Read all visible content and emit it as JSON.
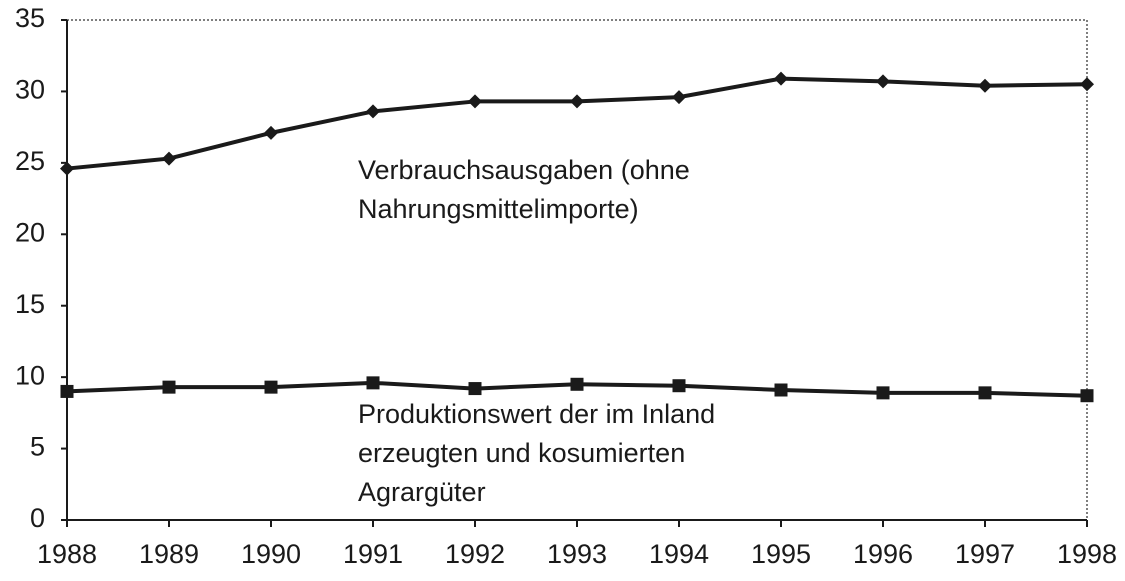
{
  "chart_data": {
    "type": "line",
    "x": [
      1988,
      1989,
      1990,
      1991,
      1992,
      1993,
      1994,
      1995,
      1996,
      1997,
      1998
    ],
    "series": [
      {
        "color": "#1a1a1a",
        "marker": "diamond",
        "values": [
          24.6,
          25.3,
          27.1,
          28.6,
          29.3,
          29.3,
          29.6,
          30.9,
          30.7,
          30.4,
          30.5
        ]
      },
      {
        "color": "#1a1a1a",
        "marker": "square",
        "values": [
          9.0,
          9.3,
          9.3,
          9.6,
          9.2,
          9.5,
          9.4,
          9.1,
          8.9,
          8.9,
          8.7
        ]
      }
    ],
    "annotations": [
      [
        "Verbrauchsausgaben (ohne",
        "Nahrungsmittelimporte)"
      ],
      [
        "Produktionswert der im Inland",
        "erzeugten und kosumierten",
        "Agrargüter"
      ]
    ],
    "xlim": [
      1988,
      1998
    ],
    "xticks": [
      1988,
      1989,
      1990,
      1991,
      1992,
      1993,
      1994,
      1995,
      1996,
      1997,
      1998
    ],
    "ylim": [
      0,
      35
    ],
    "yticks": [
      0,
      5,
      10,
      15,
      20,
      25,
      30,
      35
    ],
    "grid": false
  }
}
